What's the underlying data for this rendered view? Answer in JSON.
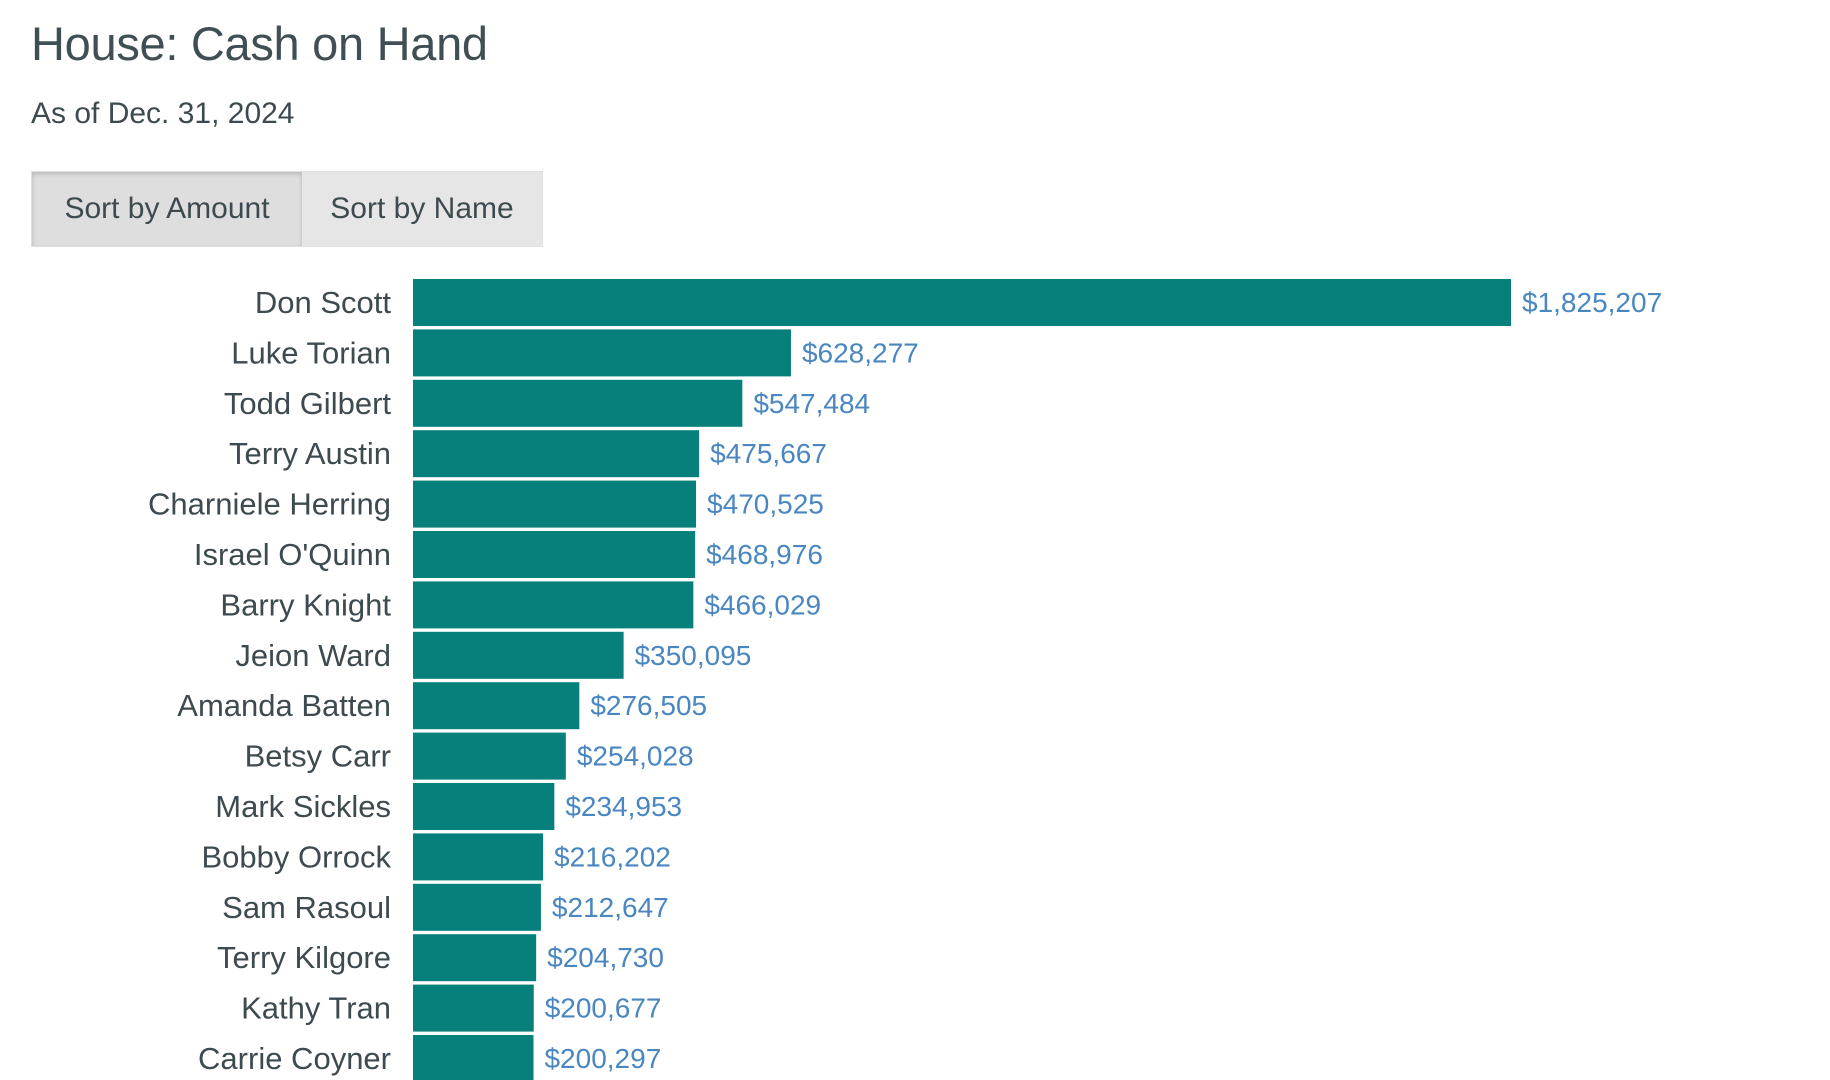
{
  "header": {
    "title": "House: Cash on Hand",
    "subtitle": "As of Dec. 31, 2024"
  },
  "controls": {
    "sort_amount_label": "Sort by Amount",
    "sort_name_label": "Sort by Name",
    "active": "amount"
  },
  "colors": {
    "bar": "#077f7b",
    "value_label": "#4a86c0",
    "name_label": "#3d4a4f"
  },
  "chart_data": {
    "type": "bar",
    "orientation": "horizontal",
    "title": "House: Cash on Hand",
    "subtitle": "As of Dec. 31, 2024",
    "value_format": "currency_usd",
    "categories": [
      "Don Scott",
      "Luke Torian",
      "Todd Gilbert",
      "Terry Austin",
      "Charniele Herring",
      "Israel O'Quinn",
      "Barry Knight",
      "Jeion Ward",
      "Amanda Batten",
      "Betsy Carr",
      "Mark Sickles",
      "Bobby Orrock",
      "Sam Rasoul",
      "Terry Kilgore",
      "Kathy Tran",
      "Carrie Coyner"
    ],
    "values": [
      1825207,
      628277,
      547484,
      475667,
      470525,
      468976,
      466029,
      350095,
      276505,
      254028,
      234953,
      216202,
      212647,
      204730,
      200677,
      200297
    ],
    "value_labels": [
      "$1,825,207",
      "$628,277",
      "$547,484",
      "$475,667",
      "$470,525",
      "$468,976",
      "$466,029",
      "$350,095",
      "$276,505",
      "$254,028",
      "$234,953",
      "$216,202",
      "$212,647",
      "$204,730",
      "$200,677",
      "$200,297"
    ],
    "sort": "descending",
    "grid": false,
    "legend": "none"
  }
}
